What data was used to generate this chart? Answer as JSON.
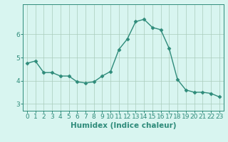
{
  "x": [
    0,
    1,
    2,
    3,
    4,
    5,
    6,
    7,
    8,
    9,
    10,
    11,
    12,
    13,
    14,
    15,
    16,
    17,
    18,
    19,
    20,
    21,
    22,
    23
  ],
  "y": [
    4.75,
    4.85,
    4.35,
    4.35,
    4.2,
    4.2,
    3.95,
    3.9,
    3.95,
    4.2,
    4.4,
    5.35,
    5.8,
    6.55,
    6.65,
    6.3,
    6.2,
    5.4,
    4.05,
    3.6,
    3.5,
    3.5,
    3.45,
    3.3
  ],
  "xlabel": "Humidex (Indice chaleur)",
  "ylim": [
    2.7,
    7.3
  ],
  "xlim": [
    -0.5,
    23.5
  ],
  "yticks": [
    3,
    4,
    5,
    6
  ],
  "xticks": [
    0,
    1,
    2,
    3,
    4,
    5,
    6,
    7,
    8,
    9,
    10,
    11,
    12,
    13,
    14,
    15,
    16,
    17,
    18,
    19,
    20,
    21,
    22,
    23
  ],
  "line_color": "#2e8b7a",
  "marker": "D",
  "marker_size": 2.5,
  "bg_color": "#d8f5f0",
  "grid_color": "#aaccbb",
  "axis_color": "#2e8b7a",
  "xlabel_fontsize": 7.5,
  "tick_fontsize": 6.5
}
